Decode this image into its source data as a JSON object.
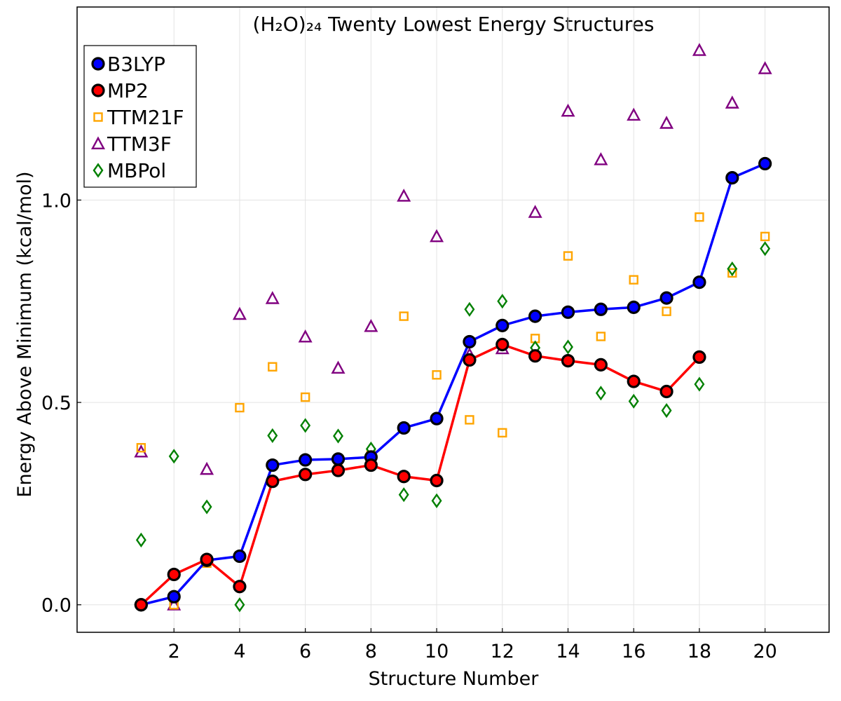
{
  "chart_data": {
    "type": "line",
    "title": "(H₂O)₂₄ Twenty Lowest Energy Structures",
    "xlabel": "Structure Number",
    "ylabel": "Energy Above Minimum (kcal/mol)",
    "xlim": [
      -0.95,
      21.95
    ],
    "ylim": [
      -0.068,
      1.477
    ],
    "xticks": [
      2,
      4,
      6,
      8,
      10,
      12,
      14,
      16,
      18,
      20
    ],
    "yticks": [
      0.0,
      0.5,
      1.0
    ],
    "ytick_labels": [
      "0.0",
      "0.5",
      "1.0"
    ],
    "grid": true,
    "legend_position": "top-left",
    "x": [
      1,
      2,
      3,
      4,
      5,
      6,
      7,
      8,
      9,
      10,
      11,
      12,
      13,
      14,
      15,
      16,
      17,
      18,
      19,
      20
    ],
    "series": [
      {
        "name": "B3LYP",
        "style": "line+markers",
        "marker": "circle",
        "line_color": "#0000ff",
        "marker_fill": "#0000ff",
        "marker_edge": "#000000",
        "values": [
          0.0,
          0.02,
          0.11,
          0.12,
          0.345,
          0.358,
          0.36,
          0.365,
          0.437,
          0.46,
          0.65,
          0.69,
          0.713,
          0.723,
          0.73,
          0.735,
          0.758,
          0.797,
          1.055,
          1.09
        ]
      },
      {
        "name": "MP2",
        "style": "line+markers",
        "marker": "circle",
        "line_color": "#ff0000",
        "marker_fill": "#ff0000",
        "marker_edge": "#000000",
        "values": [
          0.0,
          0.075,
          0.112,
          0.045,
          0.305,
          0.322,
          0.332,
          0.345,
          0.317,
          0.307,
          0.605,
          0.643,
          0.615,
          0.603,
          0.593,
          0.552,
          0.527,
          0.612,
          null,
          null
        ]
      },
      {
        "name": "TTM21F",
        "style": "markers",
        "marker": "square",
        "color": "#ffa500",
        "values": [
          0.388,
          0.0,
          0.103,
          0.487,
          0.588,
          0.513,
          0.335,
          0.37,
          0.713,
          0.568,
          0.457,
          0.425,
          0.658,
          0.862,
          0.663,
          0.803,
          0.725,
          0.958,
          0.82,
          0.91
        ]
      },
      {
        "name": "TTM3F",
        "style": "markers",
        "marker": "triangle",
        "color": "#800080",
        "values": [
          0.378,
          0.0,
          0.335,
          0.718,
          0.757,
          0.662,
          0.585,
          0.688,
          1.01,
          0.91,
          0.618,
          0.633,
          0.97,
          1.22,
          1.1,
          1.21,
          1.19,
          1.37,
          1.24,
          1.325
        ]
      },
      {
        "name": "MBPol",
        "style": "markers",
        "marker": "diamond",
        "color": "#008000",
        "values": [
          0.16,
          0.367,
          0.242,
          0.0,
          0.418,
          0.443,
          0.417,
          0.385,
          0.272,
          0.257,
          0.73,
          0.75,
          0.635,
          0.637,
          0.523,
          0.503,
          0.48,
          0.545,
          0.83,
          0.88
        ]
      }
    ]
  }
}
